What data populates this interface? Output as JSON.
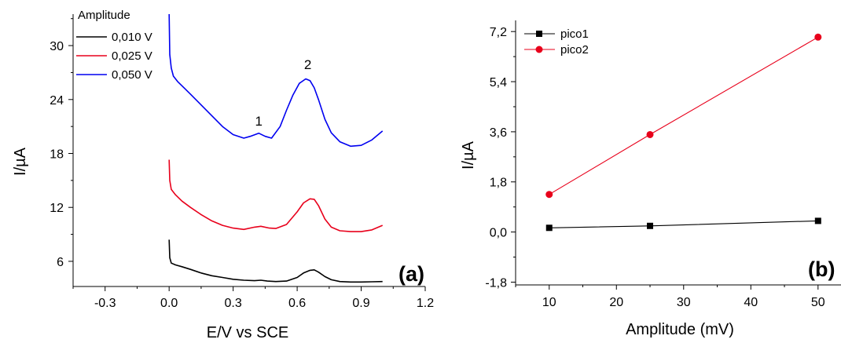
{
  "chart_data": [
    {
      "type": "line",
      "panel_label": "(a)",
      "xlabel": "E/V vs SCE",
      "ylabel": "I/µA",
      "xlim": [
        -0.45,
        1.2
      ],
      "ylim": [
        3.2,
        33.5
      ],
      "xticks": [
        -0.3,
        0.0,
        0.3,
        0.6,
        0.9,
        1.2
      ],
      "xtick_labels": [
        "-0.3",
        "0.0",
        "0.3",
        "0.6",
        "0.9",
        "1.2"
      ],
      "yticks": [
        6,
        12,
        18,
        24,
        30
      ],
      "ytick_labels": [
        "6",
        "12",
        "18",
        "24",
        "30"
      ],
      "legend": {
        "title": "Amplitude",
        "placement": "top-left"
      },
      "annotations": [
        {
          "text": "1",
          "x": 0.42,
          "y": 21.1
        },
        {
          "text": "2",
          "x": 0.65,
          "y": 27.4
        }
      ],
      "series": [
        {
          "name": "0,010 V",
          "color": "#000000",
          "x": [
            0.0,
            0.003,
            0.01,
            0.03,
            0.06,
            0.1,
            0.15,
            0.2,
            0.25,
            0.3,
            0.35,
            0.4,
            0.43,
            0.46,
            0.5,
            0.55,
            0.6,
            0.63,
            0.66,
            0.68,
            0.7,
            0.73,
            0.76,
            0.8,
            0.85,
            0.9,
            0.95,
            1.0
          ],
          "y": [
            8.4,
            6.4,
            5.8,
            5.6,
            5.4,
            5.1,
            4.7,
            4.4,
            4.2,
            4.0,
            3.9,
            3.85,
            3.9,
            3.8,
            3.75,
            3.8,
            4.2,
            4.7,
            5.0,
            5.05,
            4.8,
            4.3,
            3.95,
            3.75,
            3.7,
            3.7,
            3.72,
            3.75
          ]
        },
        {
          "name": "0,025 V",
          "color": "#e8001b",
          "x": [
            0.0,
            0.003,
            0.01,
            0.03,
            0.06,
            0.1,
            0.15,
            0.2,
            0.25,
            0.3,
            0.35,
            0.4,
            0.43,
            0.47,
            0.5,
            0.55,
            0.6,
            0.63,
            0.66,
            0.68,
            0.7,
            0.73,
            0.76,
            0.8,
            0.85,
            0.9,
            0.95,
            1.0
          ],
          "y": [
            17.3,
            15.0,
            14.0,
            13.4,
            12.7,
            12.0,
            11.2,
            10.5,
            10.0,
            9.7,
            9.55,
            9.8,
            9.9,
            9.7,
            9.65,
            10.1,
            11.5,
            12.5,
            12.95,
            12.9,
            12.2,
            10.7,
            9.8,
            9.4,
            9.3,
            9.3,
            9.5,
            10.0
          ]
        },
        {
          "name": "0,050 V",
          "color": "#0000f0",
          "x": [
            0.0,
            0.003,
            0.01,
            0.02,
            0.04,
            0.07,
            0.1,
            0.15,
            0.2,
            0.25,
            0.3,
            0.35,
            0.38,
            0.42,
            0.45,
            0.48,
            0.52,
            0.55,
            0.58,
            0.61,
            0.64,
            0.66,
            0.68,
            0.7,
            0.73,
            0.76,
            0.8,
            0.85,
            0.9,
            0.95,
            1.0
          ],
          "y": [
            33.5,
            29.0,
            27.5,
            26.6,
            26.0,
            25.3,
            24.6,
            23.4,
            22.2,
            21.0,
            20.1,
            19.7,
            19.9,
            20.25,
            19.9,
            19.7,
            21.0,
            22.8,
            24.5,
            25.8,
            26.3,
            26.1,
            25.3,
            24.0,
            21.8,
            20.3,
            19.3,
            18.8,
            18.9,
            19.5,
            20.5
          ]
        }
      ]
    },
    {
      "type": "line",
      "panel_label": "(b)",
      "xlabel": "Amplitude (mV)",
      "ylabel": "I/µA",
      "xlim": [
        5,
        54
      ],
      "ylim": [
        -1.9,
        7.6
      ],
      "xticks": [
        10,
        20,
        30,
        40,
        50
      ],
      "xtick_labels": [
        "10",
        "20",
        "30",
        "40",
        "50"
      ],
      "yticks": [
        -1.8,
        0.0,
        1.8,
        3.6,
        5.4,
        7.2
      ],
      "ytick_labels": [
        "-1,8",
        "0,0",
        "1,8",
        "3,6",
        "5,4",
        "7,2"
      ],
      "legend": {
        "placement": "top-left"
      },
      "categories": [
        10,
        25,
        50
      ],
      "series": [
        {
          "name": "pico1",
          "color": "#000000",
          "marker": "square",
          "values": [
            0.15,
            0.22,
            0.4
          ]
        },
        {
          "name": "pico2",
          "color": "#e8001b",
          "marker": "circle",
          "values": [
            1.35,
            3.5,
            7.0
          ]
        }
      ]
    }
  ]
}
